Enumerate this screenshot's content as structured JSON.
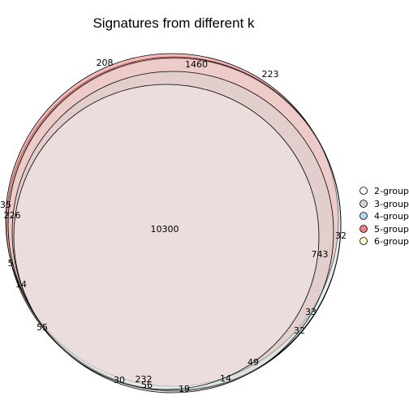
{
  "chart_data": {
    "type": "euler",
    "title": "Signatures from different k",
    "sets": [
      {
        "name": "2-group",
        "color": "#ffffff"
      },
      {
        "name": "3-group",
        "color": "#d3d3d3"
      },
      {
        "name": "4-group",
        "color": "#add8e6"
      },
      {
        "name": "5-group",
        "color": "#f08080"
      },
      {
        "name": "6-group",
        "color": "#fffacd"
      }
    ],
    "region_labels": [
      "208",
      "1460",
      "223",
      "35",
      "226",
      "10300",
      "32",
      "743",
      "5",
      "14",
      "33",
      "32",
      "55",
      "49",
      "14",
      "30",
      "232",
      "56",
      "19"
    ]
  }
}
